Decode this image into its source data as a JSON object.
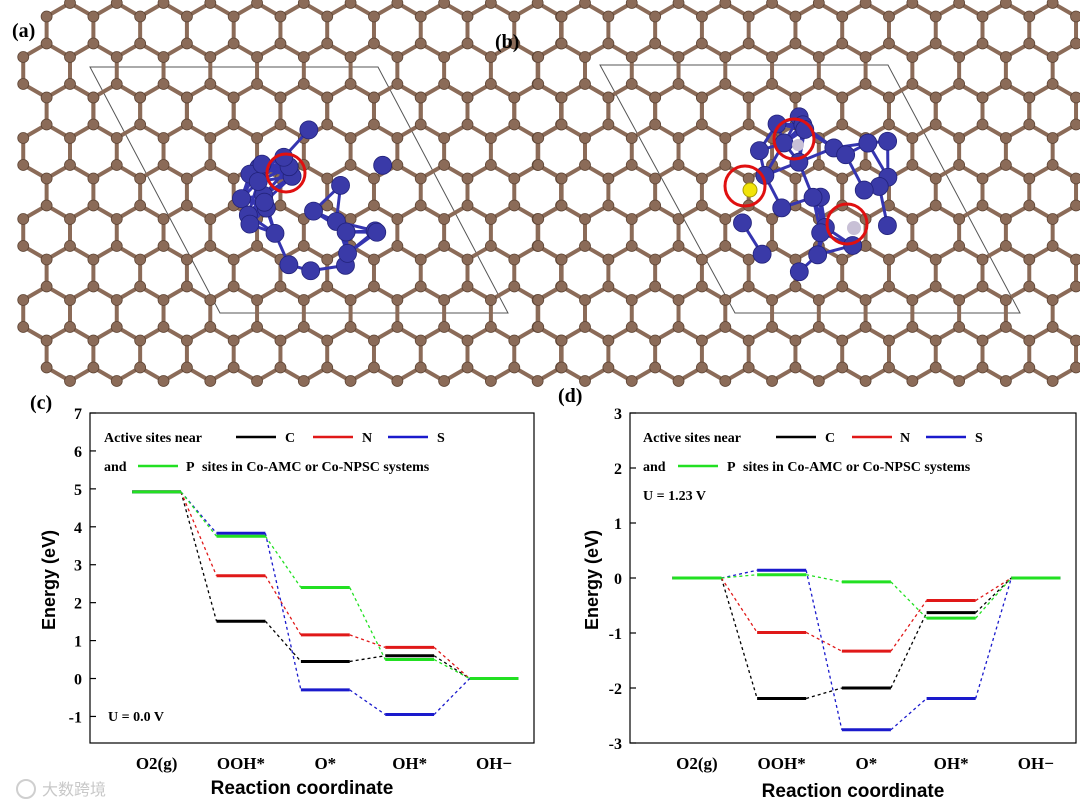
{
  "panels": {
    "a": {
      "label": "(a)"
    },
    "b": {
      "label": "(b)"
    },
    "c": {
      "label": "(c)"
    },
    "d": {
      "label": "(d)"
    }
  },
  "colors": {
    "carbon": "#8b6b58",
    "carbon_stroke": "#5e4535",
    "cobalt": "#3a3aa8",
    "cobalt_bond": "#3535b0",
    "sulfur": "#f2e40a",
    "hetero": "#c8c0d6",
    "highlight": "#e01010",
    "C": "#000000",
    "N": "#e01818",
    "S": "#1a1acc",
    "P": "#22e022"
  },
  "legend": {
    "prefix1": "Active sites near",
    "prefix2": "and",
    "suffix": "sites in Co-AMC or Co-NPSC systems",
    "entries": [
      {
        "key": "C",
        "label": "C"
      },
      {
        "key": "N",
        "label": "N"
      },
      {
        "key": "S",
        "label": "S"
      },
      {
        "key": "P",
        "label": "P"
      }
    ]
  },
  "watermark": "大数跨境",
  "chart_data": [
    {
      "type": "line",
      "panel": "c",
      "ylabel": "Energy (eV)",
      "xlabel": "Reaction coordinate",
      "annotation": "U = 0.0 V",
      "ylim": [
        -1.7,
        7
      ],
      "yticks": [
        -1,
        0,
        1,
        2,
        3,
        4,
        5,
        6,
        7
      ],
      "categories": [
        "O2(g)",
        "OOH*",
        "O*",
        "OH*",
        "OH−"
      ],
      "series": [
        {
          "name": "C",
          "values": [
            4.92,
            1.51,
            0.45,
            0.6,
            0.0
          ]
        },
        {
          "name": "N",
          "values": [
            4.92,
            2.71,
            1.15,
            0.82,
            0.0
          ]
        },
        {
          "name": "S",
          "values": [
            4.92,
            3.83,
            -0.3,
            -0.95,
            0.0
          ]
        },
        {
          "name": "P",
          "values": [
            4.92,
            3.75,
            2.4,
            0.5,
            0.0
          ]
        }
      ]
    },
    {
      "type": "line",
      "panel": "d",
      "ylabel": "Energy (eV)",
      "xlabel": "Reaction coordinate",
      "annotation": "U = 1.23 V",
      "ylim": [
        -3,
        3
      ],
      "yticks": [
        -3,
        -2,
        -1,
        0,
        1,
        2,
        3
      ],
      "categories": [
        "O2(g)",
        "OOH*",
        "O*",
        "OH*",
        "OH−"
      ],
      "series": [
        {
          "name": "C",
          "values": [
            0.0,
            -2.19,
            -2.0,
            -0.63,
            0.0
          ]
        },
        {
          "name": "N",
          "values": [
            0.0,
            -0.99,
            -1.33,
            -0.41,
            0.0
          ]
        },
        {
          "name": "S",
          "values": [
            0.0,
            0.14,
            -2.76,
            -2.19,
            0.0
          ]
        },
        {
          "name": "P",
          "values": [
            0.0,
            0.06,
            -0.07,
            -0.73,
            0.0
          ]
        }
      ]
    }
  ]
}
